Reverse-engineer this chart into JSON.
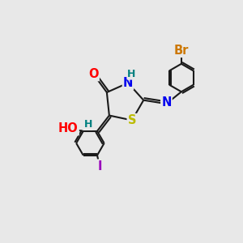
{
  "bg_color": "#e8e8e8",
  "bond_color": "#1a1a1a",
  "bond_width": 1.5,
  "atom_colors": {
    "O": "#ff0000",
    "N": "#0000ee",
    "S": "#bbbb00",
    "H_teal": "#008080",
    "Br": "#cc7700",
    "I": "#9900bb",
    "HO_O": "#ff0000",
    "HO_H": "#000000"
  },
  "font_size": 10.5,
  "fig_width": 3.0,
  "fig_height": 3.0,
  "dpi": 100
}
